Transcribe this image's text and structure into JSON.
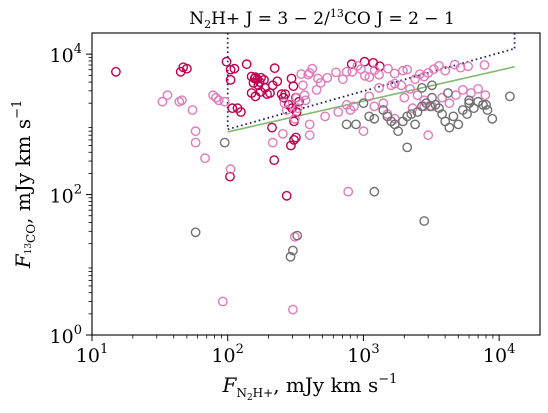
{
  "chart_data": {
    "type": "scatter",
    "xscale": "log",
    "yscale": "log",
    "xlim": [
      10,
      20000
    ],
    "ylim": [
      1,
      20000
    ],
    "title": {
      "pre": "N",
      "sub1": "2",
      "mid": "H+  J = 3 − 2/",
      "sup": "13",
      "post": "CO  J = 2 − 1"
    },
    "xlabel": {
      "main": "F",
      "sub": "N",
      "sub2": "2",
      "subrest": "H+",
      "rest": ", mJy km s",
      "sup": "−1"
    },
    "ylabel": {
      "main": "F",
      "sub_sup": "13",
      "sub": "CO",
      "rest": ", mJy km s",
      "sup": "−1"
    },
    "xticks": [
      {
        "value": 10,
        "base": "10",
        "exp": "1"
      },
      {
        "value": 100,
        "base": "10",
        "exp": "2"
      },
      {
        "value": 1000,
        "base": "10",
        "exp": "3"
      },
      {
        "value": 10000,
        "base": "10",
        "exp": "4"
      }
    ],
    "yticks": [
      {
        "value": 1,
        "base": "10",
        "exp": "0"
      },
      {
        "value": 100,
        "base": "10",
        "exp": "2"
      },
      {
        "value": 10000,
        "base": "10",
        "exp": "4"
      }
    ],
    "box": {
      "x": [
        100,
        13000
      ],
      "y": [
        850,
        12000
      ],
      "color": "#1f1f5c"
    },
    "fit_line": {
      "x": [
        100,
        13000
      ],
      "y": [
        780,
        6600
      ],
      "color": "#7fba6f"
    },
    "series": [
      {
        "color": "#c0004e",
        "points": [
          [
            15,
            5600
          ],
          [
            45,
            5600
          ],
          [
            47,
            6500
          ],
          [
            50,
            6200
          ],
          [
            98,
            7800
          ],
          [
            105,
            6000
          ],
          [
            105,
            4300
          ],
          [
            112,
            6200
          ],
          [
            138,
            7200
          ],
          [
            150,
            4800
          ],
          [
            155,
            3900
          ],
          [
            158,
            4500
          ],
          [
            160,
            4700
          ],
          [
            165,
            4400
          ],
          [
            168,
            3600
          ],
          [
            172,
            4000
          ],
          [
            176,
            4600
          ],
          [
            185,
            4300
          ],
          [
            150,
            2800
          ],
          [
            160,
            2500
          ],
          [
            175,
            2900
          ],
          [
            188,
            3300
          ],
          [
            195,
            2700
          ],
          [
            205,
            2800
          ],
          [
            215,
            3600
          ],
          [
            222,
            6300
          ],
          [
            232,
            4100
          ],
          [
            250,
            2700
          ],
          [
            265,
            2700
          ],
          [
            295,
            4500
          ],
          [
            305,
            3500
          ],
          [
            318,
            2400
          ],
          [
            335,
            2100
          ],
          [
            258,
            2400
          ],
          [
            282,
            1900
          ],
          [
            298,
            1700
          ],
          [
            322,
            1500
          ],
          [
            308,
            1100
          ],
          [
            308,
            600
          ],
          [
            292,
            500
          ],
          [
            318,
            650
          ],
          [
            272,
            96
          ],
          [
            108,
            1700
          ],
          [
            125,
            1500
          ],
          [
            212,
            900
          ],
          [
            220,
            310
          ],
          [
            104,
            180
          ],
          [
            820,
            7200
          ],
          [
            118,
            1700
          ],
          [
            1180,
            7500
          ],
          [
            1320,
            6700
          ],
          [
            1020,
            7800
          ]
        ]
      },
      {
        "color": "#e07bbc",
        "points": [
          [
            33,
            2100
          ],
          [
            36,
            2600
          ],
          [
            44,
            2100
          ],
          [
            46,
            2200
          ],
          [
            55,
            1600
          ],
          [
            58,
            550
          ],
          [
            78,
            2600
          ],
          [
            82,
            2400
          ],
          [
            86,
            2200
          ],
          [
            95,
            2100
          ],
          [
            68,
            330
          ],
          [
            58,
            800
          ],
          [
            105,
            230
          ],
          [
            215,
            550
          ],
          [
            255,
            730
          ],
          [
            262,
            2000
          ],
          [
            272,
            1600
          ],
          [
            312,
            1200
          ],
          [
            322,
            2400
          ],
          [
            328,
            1700
          ],
          [
            348,
            5200
          ],
          [
            358,
            3600
          ],
          [
            368,
            2600
          ],
          [
            375,
            2200
          ],
          [
            392,
            5100
          ],
          [
            420,
            6200
          ],
          [
            462,
            4500
          ],
          [
            484,
            3900
          ],
          [
            542,
            4600
          ],
          [
            628,
            5500
          ],
          [
            705,
            4400
          ],
          [
            752,
            5600
          ],
          [
            828,
            5600
          ],
          [
            902,
            6800
          ],
          [
            958,
            6100
          ],
          [
            1025,
            4900
          ],
          [
            1105,
            4700
          ],
          [
            1210,
            5900
          ],
          [
            1302,
            5100
          ],
          [
            1518,
            6200
          ],
          [
            1698,
            5300
          ],
          [
            1952,
            5800
          ],
          [
            2102,
            6000
          ],
          [
            2402,
            4400
          ],
          [
            2602,
            5200
          ],
          [
            2802,
            4800
          ],
          [
            3002,
            5400
          ],
          [
            3302,
            6100
          ],
          [
            3602,
            6800
          ],
          [
            4002,
            5800
          ],
          [
            4702,
            7100
          ],
          [
            5202,
            6400
          ],
          [
            5902,
            6700
          ],
          [
            7802,
            7000
          ],
          [
            402,
            1000
          ],
          [
            522,
            1300
          ],
          [
            652,
            1500
          ],
          [
            752,
            1900
          ],
          [
            802,
            1600
          ],
          [
            852,
            1800
          ],
          [
            402,
            700
          ],
          [
            1002,
            800
          ],
          [
            1202,
            1800
          ],
          [
            1402,
            2000
          ],
          [
            1502,
            1400
          ],
          [
            1702,
            1200
          ],
          [
            2002,
            2400
          ],
          [
            2302,
            1700
          ],
          [
            2502,
            2600
          ],
          [
            2802,
            2200
          ],
          [
            3202,
            1800
          ],
          [
            3802,
            2400
          ],
          [
            4302,
            2000
          ],
          [
            4802,
            2600
          ],
          [
            5402,
            3100
          ],
          [
            6202,
            2800
          ],
          [
            7002,
            3200
          ],
          [
            7902,
            2600
          ],
          [
            402,
            5400
          ],
          [
            452,
            3100
          ],
          [
            1302,
            3300
          ],
          [
            1602,
            3600
          ],
          [
            1902,
            3600
          ],
          [
            2202,
            3200
          ],
          [
            772,
            110
          ],
          [
            312,
            25
          ],
          [
            92,
            3
          ],
          [
            302,
            2.3
          ],
          [
            3002,
            700
          ],
          [
            2802,
            1800
          ],
          [
            1102,
            2500
          ],
          [
            1702,
            3800
          ]
        ]
      },
      {
        "color": "#707070",
        "points": [
          [
            58,
            29
          ],
          [
            95,
            550
          ],
          [
            290,
            13
          ],
          [
            325,
            26
          ],
          [
            752,
            1000
          ],
          [
            882,
            1000
          ],
          [
            1002,
            2000
          ],
          [
            1102,
            1300
          ],
          [
            1202,
            1200
          ],
          [
            1402,
            1600
          ],
          [
            1502,
            1300
          ],
          [
            1602,
            1100
          ],
          [
            1702,
            1000
          ],
          [
            1802,
            800
          ],
          [
            1952,
            1100
          ],
          [
            2102,
            1300
          ],
          [
            2252,
            1400
          ],
          [
            2402,
            1000
          ],
          [
            2502,
            1500
          ],
          [
            2702,
            1800
          ],
          [
            2902,
            2000
          ],
          [
            3102,
            1800
          ],
          [
            3202,
            2400
          ],
          [
            3402,
            1900
          ],
          [
            3602,
            1700
          ],
          [
            3802,
            1400
          ],
          [
            4002,
            1100
          ],
          [
            4302,
            900
          ],
          [
            4602,
            1300
          ],
          [
            5002,
            1000
          ],
          [
            5402,
            1600
          ],
          [
            5802,
            1400
          ],
          [
            6002,
            2000
          ],
          [
            6502,
            1700
          ],
          [
            7002,
            2100
          ],
          [
            7602,
            1900
          ],
          [
            8202,
            1600
          ],
          [
            8902,
            1200
          ],
          [
            12002,
            2500
          ],
          [
            2702,
            3300
          ],
          [
            3202,
            3600
          ],
          [
            8002,
            1900
          ],
          [
            1202,
            110
          ],
          [
            2102,
            470
          ],
          [
            2802,
            42
          ],
          [
            302,
            16
          ],
          [
            6002,
            2200
          ],
          [
            4202,
            2800
          ]
        ]
      }
    ]
  }
}
